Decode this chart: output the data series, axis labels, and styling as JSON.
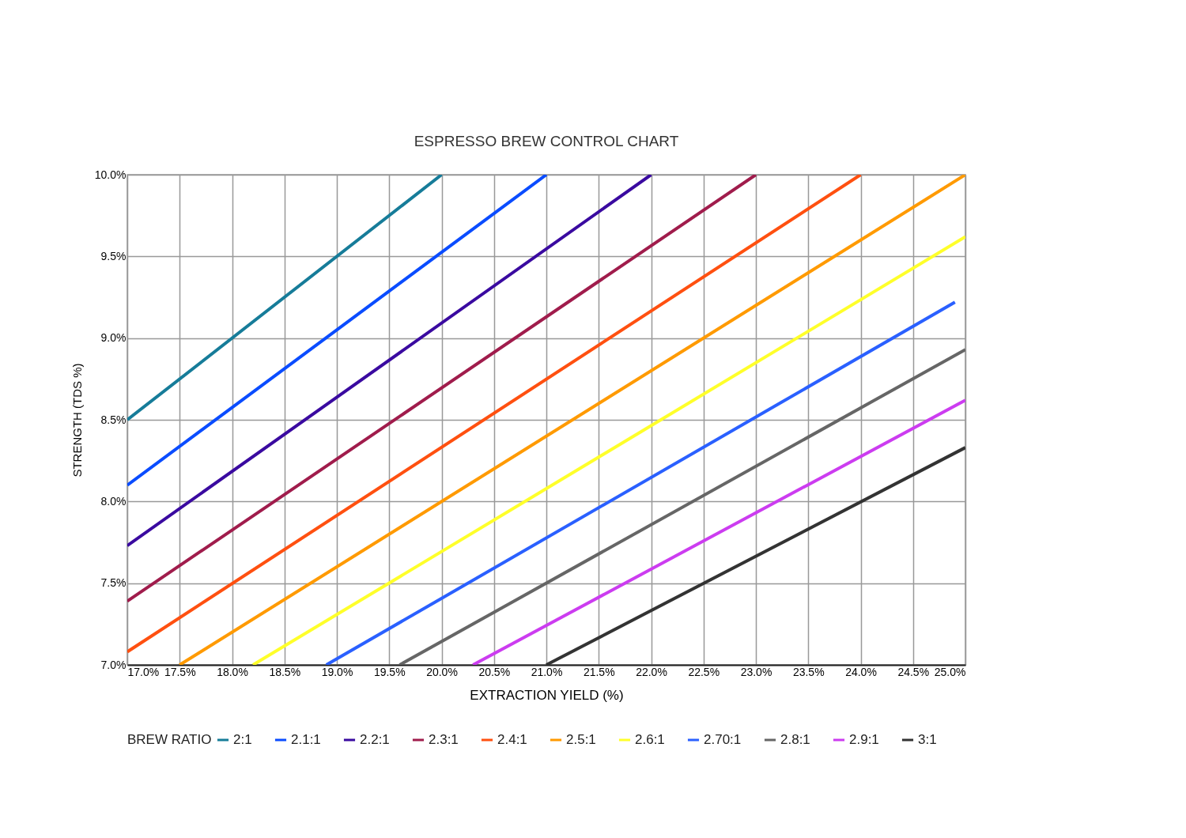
{
  "chart_data": {
    "type": "line",
    "title": "ESPRESSO BREW CONTROL CHART",
    "xlabel": "EXTRACTION YIELD (%)",
    "ylabel": "STRENGTH (TDS %)",
    "legend_title": "BREW RATIO",
    "legend": "bottom",
    "grid": true,
    "marker": "none",
    "line_style": "solid",
    "xlim": [
      17.0,
      25.0
    ],
    "ylim": [
      7.0,
      10.0
    ],
    "xticks": [
      {
        "value": 17.0,
        "label": "17.0%"
      },
      {
        "value": 17.5,
        "label": "17.5%"
      },
      {
        "value": 18.0,
        "label": "18.0%"
      },
      {
        "value": 18.5,
        "label": "18.5%"
      },
      {
        "value": 19.0,
        "label": "19.0%"
      },
      {
        "value": 19.5,
        "label": "19.5%"
      },
      {
        "value": 20.0,
        "label": "20.0%"
      },
      {
        "value": 20.5,
        "label": "20.5%"
      },
      {
        "value": 21.0,
        "label": "21.0%"
      },
      {
        "value": 21.5,
        "label": "21.5%"
      },
      {
        "value": 22.0,
        "label": "22.0%"
      },
      {
        "value": 22.5,
        "label": "22.5%"
      },
      {
        "value": 23.0,
        "label": "23.0%"
      },
      {
        "value": 23.5,
        "label": "23.5%"
      },
      {
        "value": 24.0,
        "label": "24.0%"
      },
      {
        "value": 24.5,
        "label": "24.5%"
      },
      {
        "value": 25.0,
        "label": "25.0%"
      }
    ],
    "yticks": [
      {
        "value": 7.0,
        "label": "7.0%"
      },
      {
        "value": 7.5,
        "label": "7.5%"
      },
      {
        "value": 8.0,
        "label": "8.0%"
      },
      {
        "value": 8.5,
        "label": "8.5%"
      },
      {
        "value": 9.0,
        "label": "9.0%"
      },
      {
        "value": 9.5,
        "label": "9.5%"
      },
      {
        "value": 10.0,
        "label": "10.0%"
      }
    ],
    "series": [
      {
        "name": "2:1",
        "color": "#167c99",
        "x": [
          17.0,
          20.0
        ],
        "values": [
          8.5,
          10.0
        ]
      },
      {
        "name": "2.1:1",
        "color": "#0a4cff",
        "x": [
          17.0,
          21.0
        ],
        "values": [
          8.1,
          10.0
        ]
      },
      {
        "name": "2.2:1",
        "color": "#3a0aa0",
        "x": [
          17.0,
          22.0
        ],
        "values": [
          7.73,
          10.0
        ]
      },
      {
        "name": "2.3:1",
        "color": "#a01c4c",
        "x": [
          17.0,
          23.0
        ],
        "values": [
          7.39,
          10.0
        ]
      },
      {
        "name": "2.4:1",
        "color": "#ff5010",
        "x": [
          17.0,
          24.0
        ],
        "values": [
          7.08,
          10.0
        ]
      },
      {
        "name": "2.5:1",
        "color": "#ff9a00",
        "x": [
          17.5,
          25.0
        ],
        "values": [
          7.0,
          10.0
        ]
      },
      {
        "name": "2.6:1",
        "color": "#ffff2a",
        "x": [
          18.2,
          25.0
        ],
        "values": [
          7.0,
          9.62
        ]
      },
      {
        "name": "2.70:1",
        "color": "#2a60ff",
        "x": [
          18.9,
          24.9
        ],
        "values": [
          7.0,
          9.22
        ]
      },
      {
        "name": "2.8:1",
        "color": "#666666",
        "x": [
          19.6,
          25.0
        ],
        "values": [
          7.0,
          8.93
        ]
      },
      {
        "name": "2.9:1",
        "color": "#cc3cf0",
        "x": [
          20.3,
          25.0
        ],
        "values": [
          7.0,
          8.62
        ]
      },
      {
        "name": "3:1",
        "color": "#333333",
        "x": [
          21.0,
          25.0
        ],
        "values": [
          7.0,
          8.33
        ]
      }
    ]
  }
}
